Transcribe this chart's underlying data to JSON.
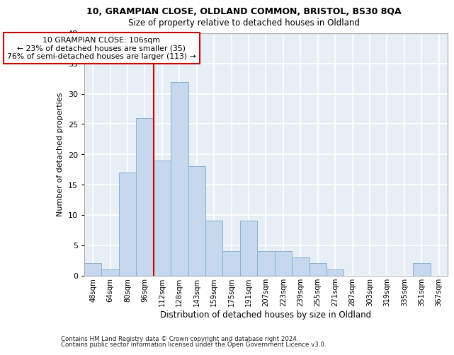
{
  "title_line1": "10, GRAMPIAN CLOSE, OLDLAND COMMON, BRISTOL, BS30 8QA",
  "title_line2": "Size of property relative to detached houses in Oldland",
  "xlabel": "Distribution of detached houses by size in Oldland",
  "ylabel": "Number of detached properties",
  "categories": [
    "48sqm",
    "64sqm",
    "80sqm",
    "96sqm",
    "112sqm",
    "128sqm",
    "143sqm",
    "159sqm",
    "175sqm",
    "191sqm",
    "207sqm",
    "223sqm",
    "239sqm",
    "255sqm",
    "271sqm",
    "287sqm",
    "303sqm",
    "319sqm",
    "335sqm",
    "351sqm",
    "367sqm"
  ],
  "values": [
    2,
    1,
    17,
    26,
    19,
    32,
    18,
    9,
    4,
    9,
    4,
    4,
    3,
    2,
    1,
    0,
    0,
    0,
    0,
    2,
    0
  ],
  "bar_color": "#c5d8ed",
  "bar_edge_color": "#8ab0d0",
  "vline_x": 3.5,
  "annotation_line1": "10 GRAMPIAN CLOSE: 106sqm",
  "annotation_line2": "← 23% of detached houses are smaller (35)",
  "annotation_line3": "76% of semi-detached houses are larger (113) →",
  "annotation_box_facecolor": "#ffffff",
  "annotation_box_edgecolor": "#cc0000",
  "vline_color": "#cc0000",
  "ylim": [
    0,
    40
  ],
  "yticks": [
    0,
    5,
    10,
    15,
    20,
    25,
    30,
    35,
    40
  ],
  "axes_facecolor": "#e8eef5",
  "grid_color": "#ffffff",
  "footer_line1": "Contains HM Land Registry data © Crown copyright and database right 2024.",
  "footer_line2": "Contains public sector information licensed under the Open Government Licence v3.0."
}
